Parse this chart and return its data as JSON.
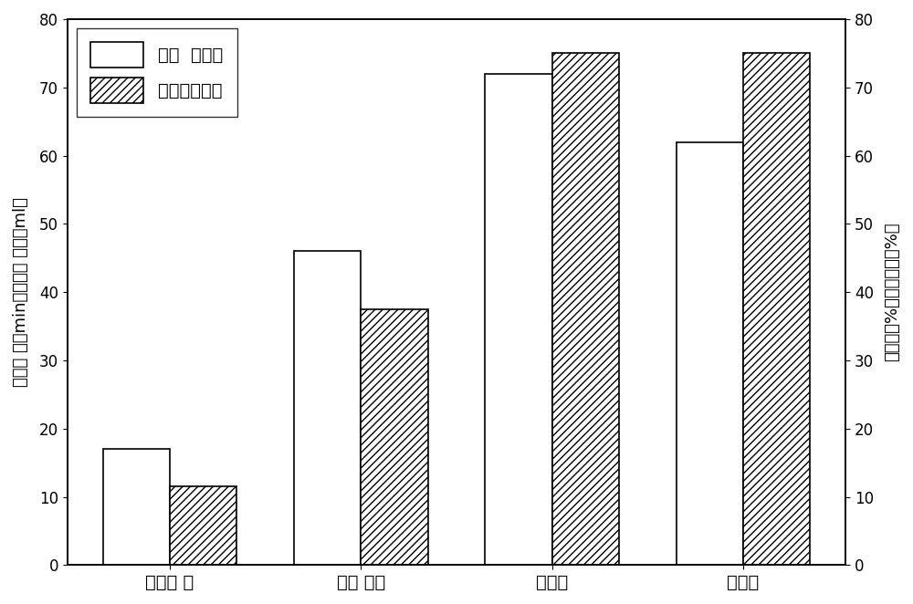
{
  "categories": [
    "沉降时 间",
    "泥底 体积",
    "简纯度",
    "脱色率"
  ],
  "series1_values": [
    17,
    46,
    72,
    62
  ],
  "series2_values": [
    11.5,
    37.5,
    75,
    75
  ],
  "series1_label": "聚丙  烯酰胺",
  "series2_label": "微生物絮凝剂",
  "ylabel_left": "沉降时 间（min），泥底 体积（ml）",
  "ylabel_right": "简纯度（%），脱色率（%）",
  "ylim": [
    0,
    80
  ],
  "yticks": [
    0,
    10,
    20,
    30,
    40,
    50,
    60,
    70,
    80
  ],
  "bar_width": 0.35,
  "background_color": "#ffffff",
  "bar_color1": "#ffffff",
  "bar_color2": "#ffffff",
  "hatch2": "////",
  "edge_color": "#000000",
  "figsize": [
    10,
    6.62
  ],
  "dpi": 100
}
